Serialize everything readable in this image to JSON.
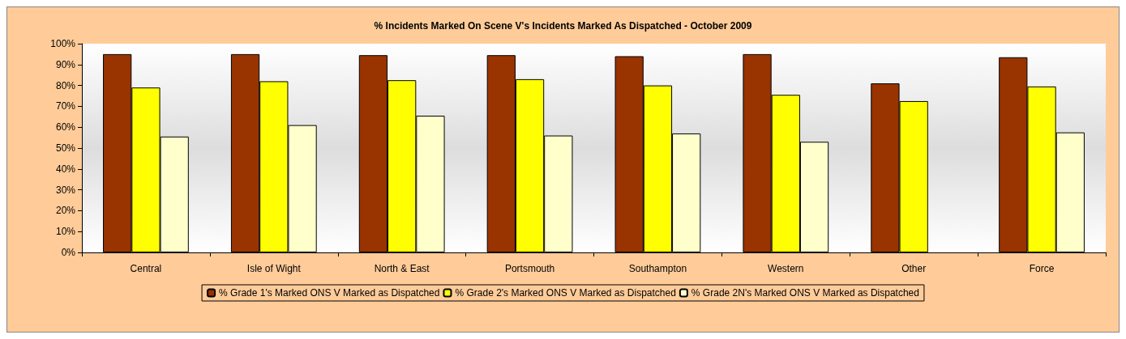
{
  "chart_data": {
    "type": "bar",
    "title": "% Incidents Marked On Scene V's Incidents Marked As Dispatched - October 2009",
    "categories": [
      "Central",
      "Isle of Wight",
      "North & East",
      "Portsmouth",
      "Southampton",
      "Western",
      "Other",
      "Force"
    ],
    "series": [
      {
        "name": "% Grade 1's Marked ONS V Marked as Dispatched",
        "color": "#993300",
        "values": [
          95,
          95,
          94.5,
          94.5,
          94,
          95,
          81,
          93.5
        ]
      },
      {
        "name": "% Grade 2's Marked ONS V Marked as Dispatched",
        "color": "#ffff00",
        "values": [
          79,
          82,
          82.5,
          83,
          80,
          75.5,
          72.5,
          79.5
        ]
      },
      {
        "name": "% Grade 2N's Marked ONS V Marked as Dispatched",
        "color": "#ffffcc",
        "values": [
          55.5,
          61,
          65.5,
          56,
          57,
          53,
          null,
          57.5
        ]
      }
    ],
    "ylim": [
      0,
      100
    ],
    "yticks": [
      {
        "value": 0,
        "label": "0%"
      },
      {
        "value": 10,
        "label": "10%"
      },
      {
        "value": 20,
        "label": "20%"
      },
      {
        "value": 30,
        "label": "30%"
      },
      {
        "value": 40,
        "label": "40%"
      },
      {
        "value": 50,
        "label": "50%"
      },
      {
        "value": 60,
        "label": "60%"
      },
      {
        "value": 70,
        "label": "70%"
      },
      {
        "value": 80,
        "label": "80%"
      },
      {
        "value": 90,
        "label": "90%"
      },
      {
        "value": 100,
        "label": "100%"
      }
    ],
    "grid": false,
    "legend": "bottom"
  }
}
